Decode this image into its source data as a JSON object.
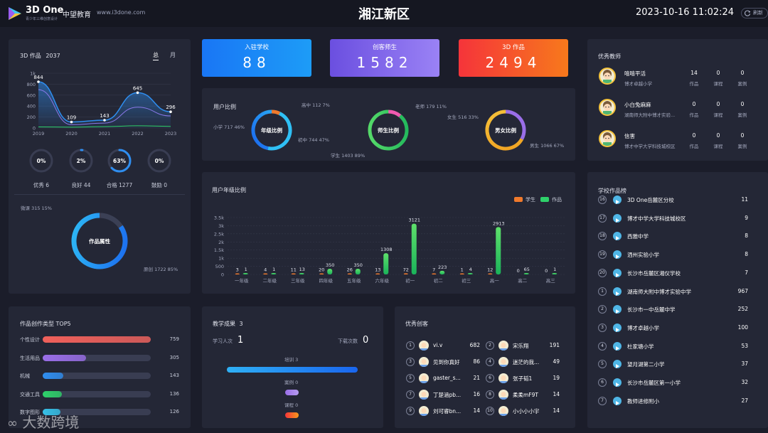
{
  "header": {
    "logo_text": "3D One",
    "logo_sub": "青少年三维创意设计",
    "brand": "中望教育",
    "site": "www.i3done.com",
    "title": "湘江新区",
    "datetime": "2023-10-16 11:02:24",
    "refresh_label": "刷新"
  },
  "works": {
    "title": "3D 作品",
    "count": "2037",
    "tab_total": "总",
    "tab_month": "月",
    "chart_data": {
      "type": "line",
      "x": [
        "2019",
        "2020",
        "2021",
        "2022",
        "2023"
      ],
      "series": [
        {
          "values": [
            844,
            109,
            143,
            645,
            296
          ]
        },
        {
          "values": [
            700,
            60,
            90,
            380,
            220
          ]
        },
        {
          "values": [
            20,
            15,
            25,
            40,
            30
          ]
        }
      ],
      "ylim": [
        0,
        1000
      ],
      "yticks": [
        "0",
        "200",
        "400",
        "600",
        "800",
        "1k"
      ],
      "labels": [
        "844",
        "109",
        "143",
        "645",
        "296"
      ]
    },
    "rings": [
      {
        "pct": "0%",
        "label": "优秀 6",
        "value": 0
      },
      {
        "pct": "2%",
        "label": "良好 44",
        "value": 2
      },
      {
        "pct": "63%",
        "label": "合格 1277",
        "value": 63
      },
      {
        "pct": "0%",
        "label": "鼓励 0",
        "value": 0
      }
    ],
    "attr_chart": {
      "type": "pie",
      "center": "作品属性",
      "slices": [
        {
          "label": "微课 315 15%",
          "value": 315
        },
        {
          "label": "原创 1722 85%",
          "value": 1722
        }
      ]
    }
  },
  "stats": [
    {
      "label": "入驻学校",
      "value": "88"
    },
    {
      "label": "创客师生",
      "value": "1582"
    },
    {
      "label": "3D 作品",
      "value": "2494"
    }
  ],
  "user_ratio": {
    "title": "用户比例",
    "donuts": [
      {
        "center": "年级比例",
        "labels": [
          "高中 112 7%",
          "小学 717 46%",
          "初中 744 47%"
        ]
      },
      {
        "center": "师生比例",
        "labels": [
          "老师 179 11%",
          "学生 1403 89%"
        ]
      },
      {
        "center": "男女比例",
        "labels": [
          "女生 516 33%",
          "男生 1066 67%"
        ]
      }
    ]
  },
  "grade_ratio": {
    "title": "用户年级比例",
    "legend": [
      "学生",
      "作品"
    ],
    "chart_data": {
      "type": "bar",
      "categories": [
        "一年级",
        "二年级",
        "三年级",
        "四年级",
        "五年级",
        "六年级",
        "初一",
        "初二",
        "初三",
        "高一",
        "高二",
        "高三"
      ],
      "series": [
        {
          "name": "学生",
          "values": [
            3,
            4,
            11,
            20,
            26,
            13,
            72,
            7,
            1,
            12,
            0,
            0
          ]
        },
        {
          "name": "作品",
          "values": [
            1,
            1,
            13,
            350,
            350,
            1308,
            3121,
            223,
            4,
            2913,
            65,
            1
          ]
        }
      ],
      "ylim": [
        0,
        3500
      ],
      "yticks": [
        "0",
        "500",
        "1k",
        "1.5k",
        "2k",
        "2.5k",
        "3k",
        "3.5k"
      ]
    }
  },
  "teachers": {
    "title": "优秀教师",
    "col_labels": [
      "作品",
      "课程",
      "案例"
    ],
    "items": [
      {
        "name": "嘻嘻平活",
        "school": "博才卓越小学",
        "values": [
          "14",
          "0",
          "0"
        ]
      },
      {
        "name": "小白兔麻麻",
        "school": "湖南师大附中博才实验...",
        "values": [
          "0",
          "0",
          "0"
        ]
      },
      {
        "name": "信害",
        "school": "博才中学大学科技城校区",
        "values": [
          "0",
          "0",
          "0"
        ]
      }
    ]
  },
  "school_ranking": {
    "title": "学校作品榜",
    "items": [
      {
        "rank": "16",
        "name": "3D One岳麓区分校",
        "value": "11"
      },
      {
        "rank": "17",
        "name": "博才中学大学科技城校区",
        "value": "9"
      },
      {
        "rank": "18",
        "name": "西雅中学",
        "value": "8"
      },
      {
        "rank": "19",
        "name": "洒州实验小学",
        "value": "8"
      },
      {
        "rank": "20",
        "name": "长沙市岳麓区湘仪学校",
        "value": "7"
      },
      {
        "rank": "1",
        "name": "湖南师大附中博才实验中学",
        "value": "967"
      },
      {
        "rank": "2",
        "name": "长沙市一中岳麓中学",
        "value": "252"
      },
      {
        "rank": "3",
        "name": "博才卓越小学",
        "value": "100"
      },
      {
        "rank": "4",
        "name": "杜家塘小学",
        "value": "53"
      },
      {
        "rank": "5",
        "name": "望月湖第二小学",
        "value": "37"
      },
      {
        "rank": "6",
        "name": "长沙市岳麓区第一小学",
        "value": "32"
      },
      {
        "rank": "7",
        "name": "教师进修附小",
        "value": "27"
      }
    ]
  },
  "creation_types": {
    "title": "作品创作类型 TOP5",
    "items": [
      {
        "label": "个性设计",
        "value": 759,
        "display": "759",
        "color": "#f0605a"
      },
      {
        "label": "生活用品",
        "value": 305,
        "display": "305",
        "color": "#9a6ee8"
      },
      {
        "label": "机械",
        "value": 143,
        "display": "143",
        "color": "#2f8ef0"
      },
      {
        "label": "交通工具",
        "value": 136,
        "display": "136",
        "color": "#2ed16a"
      },
      {
        "label": "数字图形",
        "value": 126,
        "display": "126",
        "color": "#36c1e8"
      }
    ],
    "max": 759
  },
  "teaching": {
    "title": "教学成果",
    "count": "3",
    "learn_label": "学习人次",
    "learn_value": "1",
    "download_label": "下载次数",
    "download_value": "0",
    "bars": [
      {
        "label": "培训 3",
        "value": 3
      },
      {
        "label": "案例 0",
        "value": 0
      },
      {
        "label": "课程 0",
        "value": 0
      }
    ]
  },
  "makers": {
    "title": "优秀创客",
    "items": [
      {
        "rank": "1",
        "name": "vi.v",
        "value": "682"
      },
      {
        "rank": "2",
        "name": "宋乐翔",
        "value": "191"
      },
      {
        "rank": "3",
        "name": "见到你真好",
        "value": "86"
      },
      {
        "rank": "4",
        "name": "迷茫的我...",
        "value": "49"
      },
      {
        "rank": "5",
        "name": "gaster_s...",
        "value": "21"
      },
      {
        "rank": "6",
        "name": "张子韬1",
        "value": "19"
      },
      {
        "rank": "7",
        "name": "丁楚涵pb...",
        "value": "16"
      },
      {
        "rank": "8",
        "name": "柔柔mF9T",
        "value": "14"
      },
      {
        "rank": "9",
        "name": "刘可睿bn...",
        "value": "14"
      },
      {
        "rank": "10",
        "name": "小小小小宇",
        "value": "14"
      }
    ]
  },
  "watermark": "大数跨境"
}
